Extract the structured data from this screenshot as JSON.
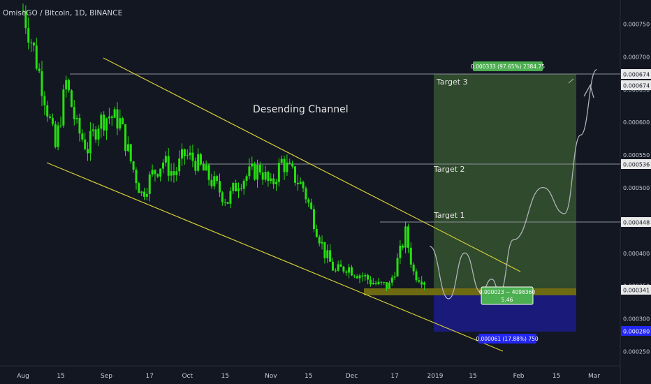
{
  "header": {
    "symbol_title": "OmiseGO / Bitcoin, 1D, BINANCE"
  },
  "colors": {
    "background": "#131722",
    "candle_up": "#26e00f",
    "channel": "#d6cf35",
    "profit_zone": "#2f4a2c",
    "loss_zone": "#191a7a",
    "support_zone": "#6e6a12",
    "label_green": "#4caf50",
    "label_blue": "#2427f0",
    "axis_text": "#c9ccd3",
    "grid_line": "#8d919a"
  },
  "annotations": {
    "channel_title": "Desending Channel",
    "target1": "Target 1",
    "target2": "Target 2",
    "target3": "Target 3",
    "profit_label": "0.000333 (97.65%) 2384.75",
    "range_label_line1": "0.000023 ~ 4098360",
    "range_label_line2": "5.46",
    "loss_label": "0.000061 (17.88%) 750"
  },
  "price_axis": {
    "ticks": [
      "0.000750",
      "0.000700",
      "0.000650",
      "0.000600",
      "0.000550",
      "0.000500",
      "0.000450",
      "0.000400",
      "0.000350",
      "0.000300",
      "0.000250"
    ],
    "markers": [
      {
        "label": "0.000674",
        "style": "white"
      },
      {
        "label": "0.000674",
        "style": "white"
      },
      {
        "label": "0.000536",
        "style": "white"
      },
      {
        "label": "0.000448",
        "style": "white"
      },
      {
        "label": "0.000341",
        "style": "white"
      },
      {
        "label": "0.000280",
        "style": "blue"
      }
    ]
  },
  "time_axis": {
    "ticks": [
      "Aug",
      "15",
      "Sep",
      "17",
      "Oct",
      "15",
      "Nov",
      "15",
      "Dec",
      "17",
      "2019",
      "15",
      "Feb",
      "15",
      "Mar"
    ]
  },
  "chart_data": {
    "type": "candlestick",
    "title": "OmiseGO / Bitcoin, 1D, BINANCE",
    "x_range": [
      "2018-07-29",
      "2019-03-08"
    ],
    "ylim": [
      0.00023,
      0.00079
    ],
    "grid": false,
    "targets": [
      0.000448,
      0.000536,
      0.000674
    ],
    "entry_price": 0.000341,
    "stop_price": 0.00028,
    "close_series": [
      {
        "date": "2018-08-01",
        "close": 0.00077
      },
      {
        "date": "2018-08-05",
        "close": 0.00071
      },
      {
        "date": "2018-08-09",
        "close": 0.00064
      },
      {
        "date": "2018-08-13",
        "close": 0.00056
      },
      {
        "date": "2018-08-17",
        "close": 0.00066
      },
      {
        "date": "2018-08-21",
        "close": 0.00059
      },
      {
        "date": "2018-08-25",
        "close": 0.00056
      },
      {
        "date": "2018-08-29",
        "close": 0.0006
      },
      {
        "date": "2018-09-02",
        "close": 0.00061
      },
      {
        "date": "2018-09-06",
        "close": 0.0006
      },
      {
        "date": "2018-09-10",
        "close": 0.00054
      },
      {
        "date": "2018-09-14",
        "close": 0.00049
      },
      {
        "date": "2018-09-18",
        "close": 0.00052
      },
      {
        "date": "2018-09-22",
        "close": 0.00054
      },
      {
        "date": "2018-09-26",
        "close": 0.00052
      },
      {
        "date": "2018-09-30",
        "close": 0.00055
      },
      {
        "date": "2018-10-04",
        "close": 0.00054
      },
      {
        "date": "2018-10-08",
        "close": 0.00052
      },
      {
        "date": "2018-10-12",
        "close": 0.0005
      },
      {
        "date": "2018-10-16",
        "close": 0.00048
      },
      {
        "date": "2018-10-20",
        "close": 0.00051
      },
      {
        "date": "2018-10-24",
        "close": 0.00052
      },
      {
        "date": "2018-10-28",
        "close": 0.00053
      },
      {
        "date": "2018-11-01",
        "close": 0.0005
      },
      {
        "date": "2018-11-05",
        "close": 0.00054
      },
      {
        "date": "2018-11-09",
        "close": 0.00052
      },
      {
        "date": "2018-11-13",
        "close": 0.0005
      },
      {
        "date": "2018-11-17",
        "close": 0.00045
      },
      {
        "date": "2018-11-21",
        "close": 0.0004
      },
      {
        "date": "2018-11-25",
        "close": 0.00037
      },
      {
        "date": "2018-11-29",
        "close": 0.00038
      },
      {
        "date": "2018-12-03",
        "close": 0.00037
      },
      {
        "date": "2018-12-07",
        "close": 0.00036
      },
      {
        "date": "2018-12-11",
        "close": 0.00035
      },
      {
        "date": "2018-12-15",
        "close": 0.00035
      },
      {
        "date": "2018-12-19",
        "close": 0.0004
      },
      {
        "date": "2018-12-21",
        "close": 0.00043
      },
      {
        "date": "2018-12-24",
        "close": 0.00037
      },
      {
        "date": "2018-12-28",
        "close": 0.00036
      }
    ],
    "projection": [
      {
        "date": "2018-12-30",
        "price": 0.00041
      },
      {
        "date": "2019-01-06",
        "price": 0.00033
      },
      {
        "date": "2019-01-12",
        "price": 0.0004
      },
      {
        "date": "2019-01-18",
        "price": 0.00034
      },
      {
        "date": "2019-01-22",
        "price": 0.00036
      },
      {
        "date": "2019-01-25",
        "price": 0.00034
      },
      {
        "date": "2019-01-30",
        "price": 0.00042
      },
      {
        "date": "2019-02-10",
        "price": 0.0005
      },
      {
        "date": "2019-02-18",
        "price": 0.00046
      },
      {
        "date": "2019-02-24",
        "price": 0.00058
      },
      {
        "date": "2019-03-02",
        "price": 0.00068
      }
    ]
  }
}
